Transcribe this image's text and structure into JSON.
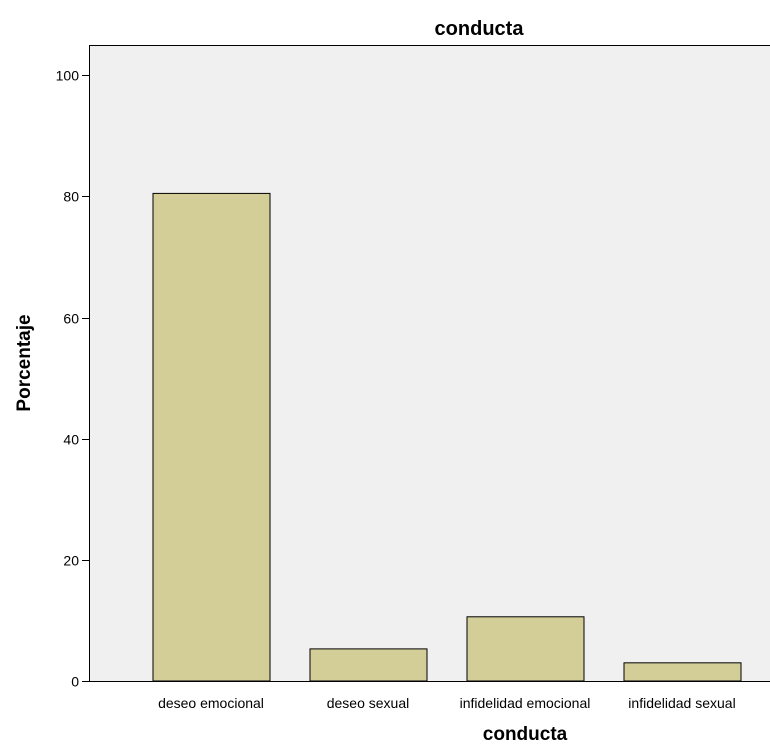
{
  "chart_data": {
    "type": "bar",
    "title": "conducta",
    "xlabel": "conducta",
    "ylabel": "Porcentaje",
    "categories": [
      "deseo emocional",
      "deseo sexual",
      "infidelidad emocional",
      "infidelidad sexual"
    ],
    "values": [
      80.5,
      5.3,
      10.6,
      3.0
    ],
    "ylim": [
      0,
      105
    ],
    "yticks": [
      0,
      20,
      40,
      60,
      80,
      100
    ],
    "grid": false,
    "colors": {
      "bar_fill": "#d3ce98",
      "bar_stroke": "#000000",
      "plot_bg": "#f0f0f0"
    }
  }
}
